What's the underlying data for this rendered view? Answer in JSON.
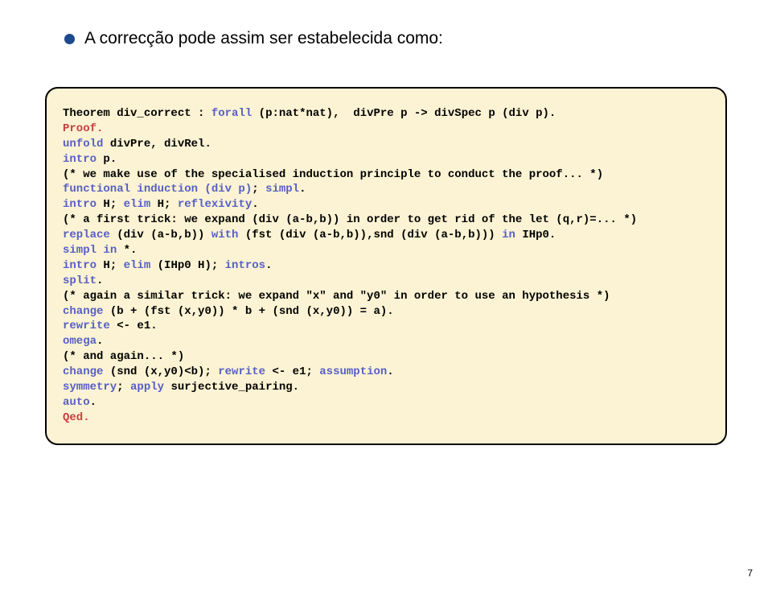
{
  "headline": "A correcção pode assim ser estabelecida como:",
  "page_number": "7",
  "colors": {
    "bullet": "#1e4a8c",
    "codebox_bg": "#fbf3d3",
    "codebox_border": "#000000",
    "keyword": "#575fc6",
    "special": "#c64040",
    "page_bg": "#ffffff"
  },
  "code": {
    "l01a": "Theorem div_correct : ",
    "l01b": "forall",
    "l01c": " (p:nat*nat),  divPre p -> divSpec p (div p).",
    "l02": "Proof.",
    "l03a": "unfold",
    "l03b": " divPre, divRel.",
    "l04a": "intro",
    "l04b": " p.",
    "l05": "(* we make use of the specialised induction principle to conduct the proof... *)",
    "l06a": "functional induction (div p)",
    "l06b": "; ",
    "l06c": "simpl",
    "l06d": ".",
    "l07a": "intro",
    "l07b": " H; ",
    "l07c": "elim",
    "l07d": " H; ",
    "l07e": "reflexivity",
    "l07f": ".",
    "l08": "(* a first trick: we expand (div (a-b,b)) in order to get rid of the let (q,r)=... *)",
    "l09a": "replace",
    "l09b": " (div (a-b,b)) ",
    "l09c": "with",
    "l09d": " (fst (div (a-b,b)),snd (div (a-b,b))) ",
    "l09e": "in",
    "l09f": " IHp0.",
    "l10a": "simpl",
    "l10b": " ",
    "l10c": "in",
    "l10d": " *.",
    "l11a": "intro",
    "l11b": " H; ",
    "l11c": "elim",
    "l11d": " (IHp0 H); ",
    "l11e": "intros",
    "l11f": ".",
    "l12a": "split",
    "l12b": ".",
    "l13": "(* again a similar trick: we expand \"x\" and \"y0\" in order to use an hypothesis *)",
    "l14a": "change",
    "l14b": " (b + (fst (x,y0)) * b + (snd (x,y0)) = a).",
    "l15a": "rewrite",
    "l15b": " <- e1.",
    "l16a": "omega",
    "l16b": ".",
    "l17": "(* and again... *)",
    "l18a": "change",
    "l18b": " (snd (x,y0)<b); ",
    "l18c": "rewrite",
    "l18d": " <- e1; ",
    "l18e": "assumption",
    "l18f": ".",
    "l19a": "symmetry",
    "l19b": "; ",
    "l19c": "apply",
    "l19d": " surjective_pairing.",
    "l20a": "auto",
    "l20b": ".",
    "l21": "Qed."
  }
}
